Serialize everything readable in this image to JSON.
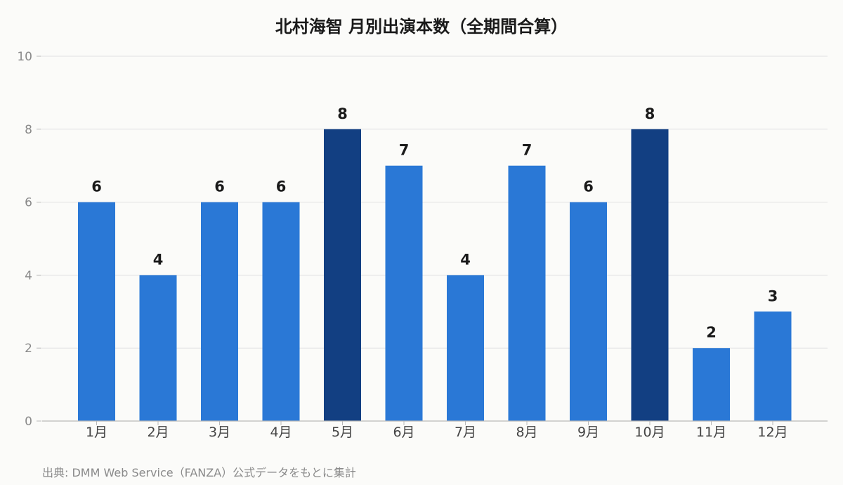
{
  "chart_data": {
    "type": "bar",
    "title": "北村海智 月別出演本数（全期間合算）",
    "categories": [
      "1月",
      "2月",
      "3月",
      "4月",
      "5月",
      "6月",
      "7月",
      "8月",
      "9月",
      "10月",
      "11月",
      "12月"
    ],
    "values": [
      6,
      4,
      6,
      6,
      8,
      7,
      4,
      7,
      6,
      8,
      2,
      3
    ],
    "ylim": [
      0,
      10
    ],
    "yticks": [
      0,
      2,
      4,
      6,
      8,
      10
    ],
    "grid": true,
    "colors": {
      "bar": "#2a78d6",
      "bar_highlight": "#123f82",
      "grid": "#e2e2e2",
      "axis": "#b9b9b9"
    },
    "highlight_rule": "max"
  },
  "source_note": "出典: DMM Web Service（FANZA）公式データをもとに集計"
}
